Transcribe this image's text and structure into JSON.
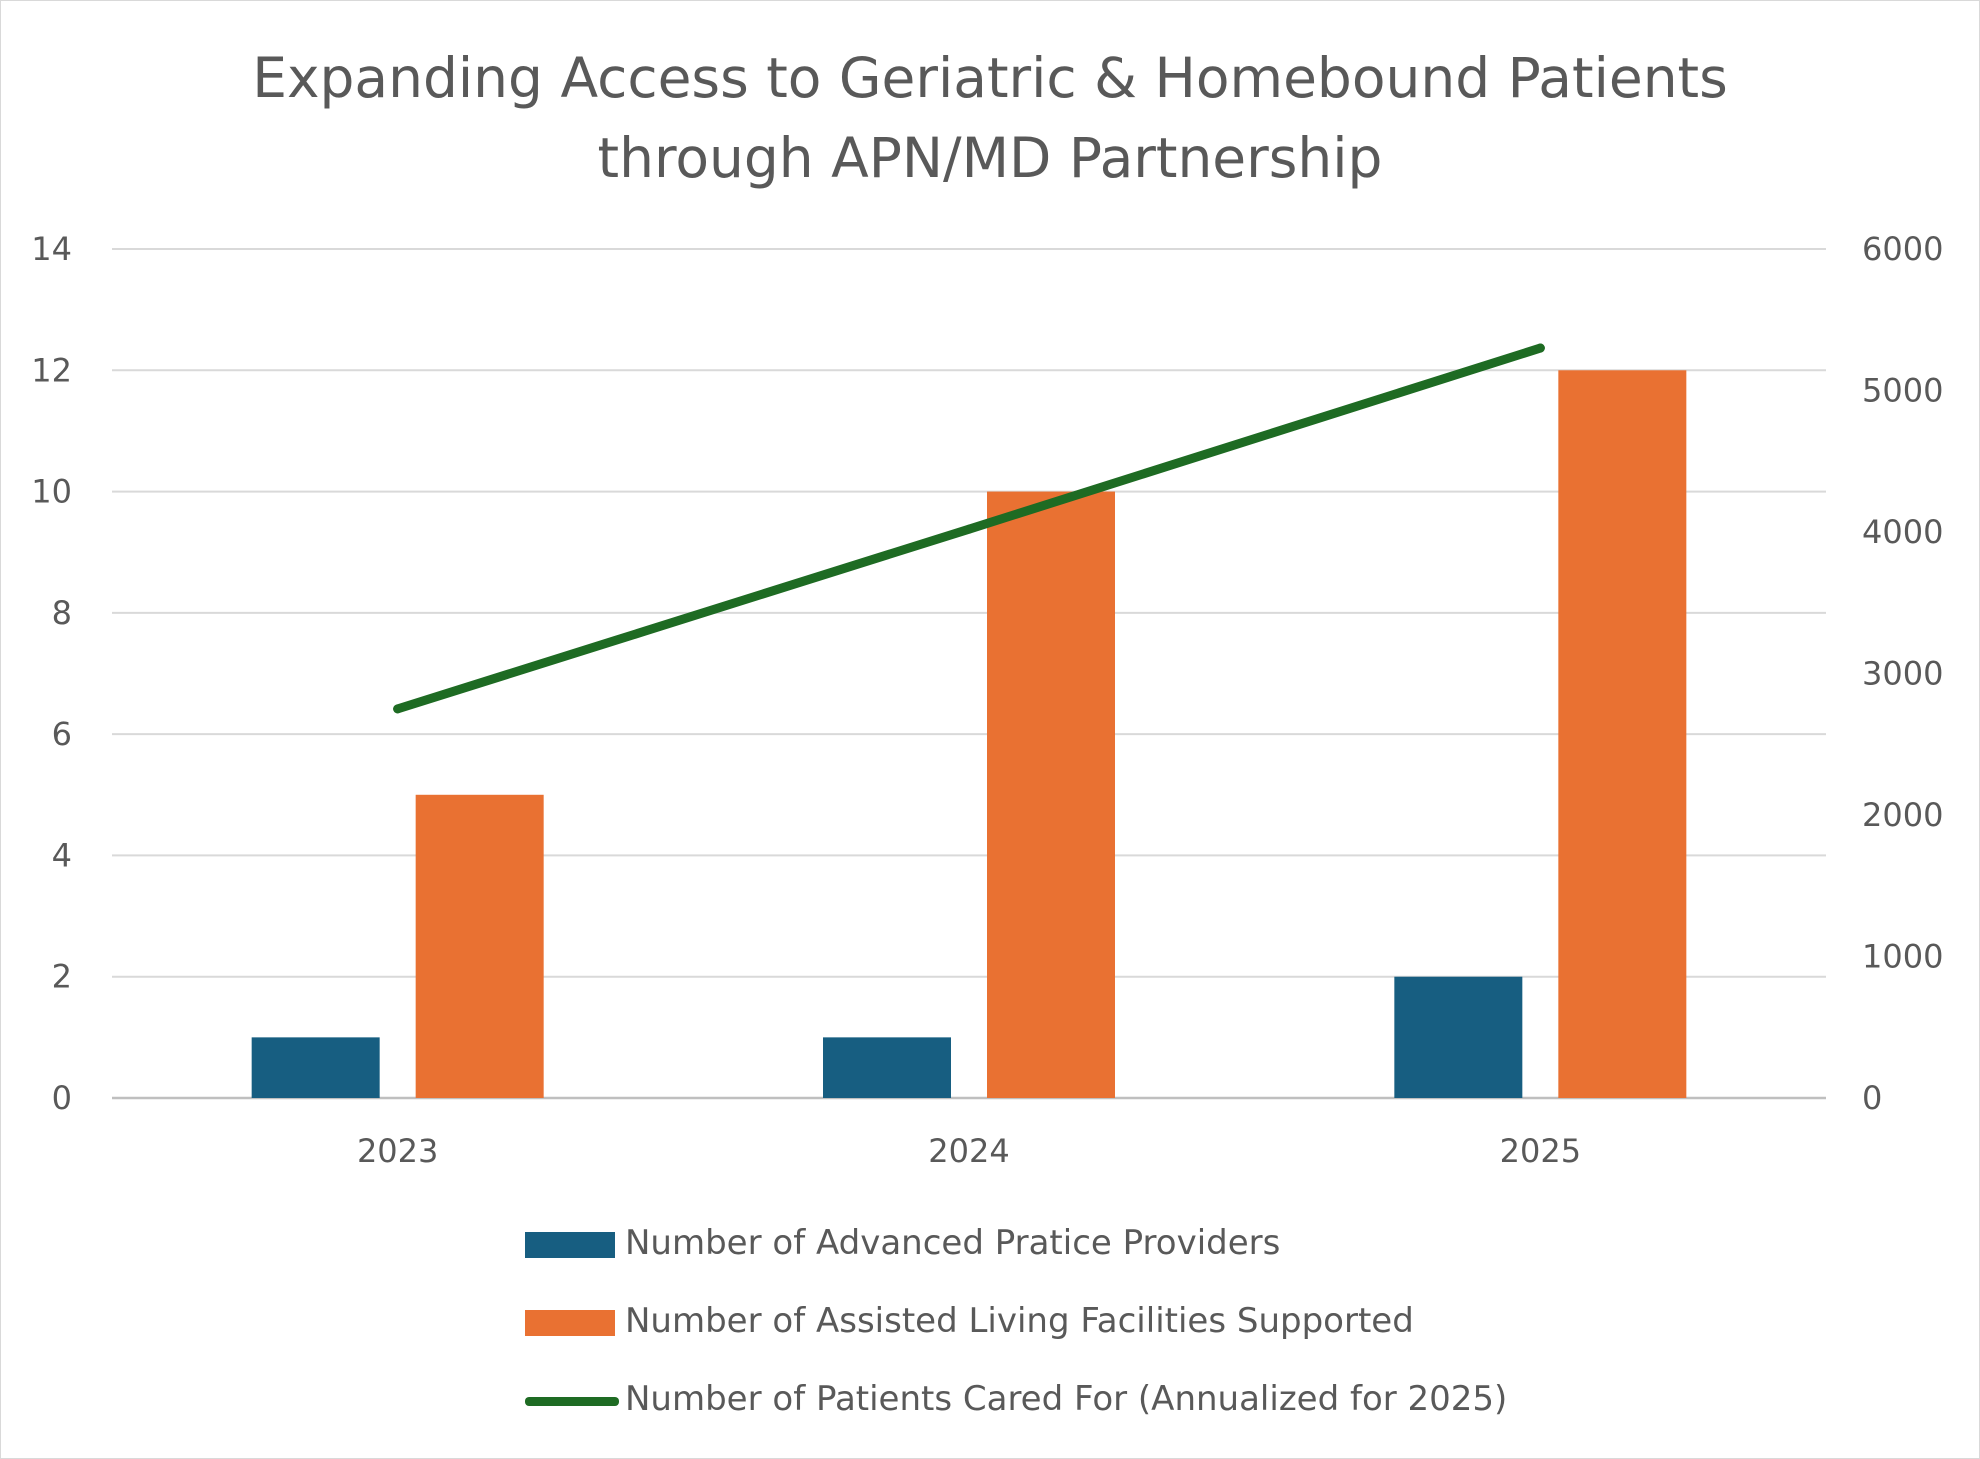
{
  "chart_data": {
    "type": "bar",
    "title_lines": [
      "Expanding Access to Geriatric & Homebound Patients",
      "through APN/MD Partnership"
    ],
    "categories": [
      "2023",
      "2024",
      "2025"
    ],
    "series": [
      {
        "name": "Number of Advanced Pratice Providers",
        "type": "bar",
        "axis": "left",
        "color": "#175e81",
        "values": [
          1,
          1,
          2
        ]
      },
      {
        "name": "Number of Assisted Living Facilities Supported",
        "type": "bar",
        "axis": "left",
        "color": "#e97132",
        "values": [
          5,
          10,
          12
        ]
      },
      {
        "name": "Number of Patients Cared For (Annualized for 2025)",
        "type": "line",
        "axis": "right",
        "color": "#1e6b23",
        "values": [
          2750,
          4020,
          5300
        ]
      }
    ],
    "y_left": {
      "min": 0,
      "max": 14,
      "ticks": [
        "0",
        "2",
        "4",
        "6",
        "8",
        "10",
        "12",
        "14"
      ]
    },
    "y_right": {
      "min": 0,
      "max": 6000,
      "ticks": [
        "0",
        "1000",
        "2000",
        "3000",
        "4000",
        "5000",
        "6000"
      ]
    },
    "grid": true,
    "legend_position": "bottom"
  }
}
